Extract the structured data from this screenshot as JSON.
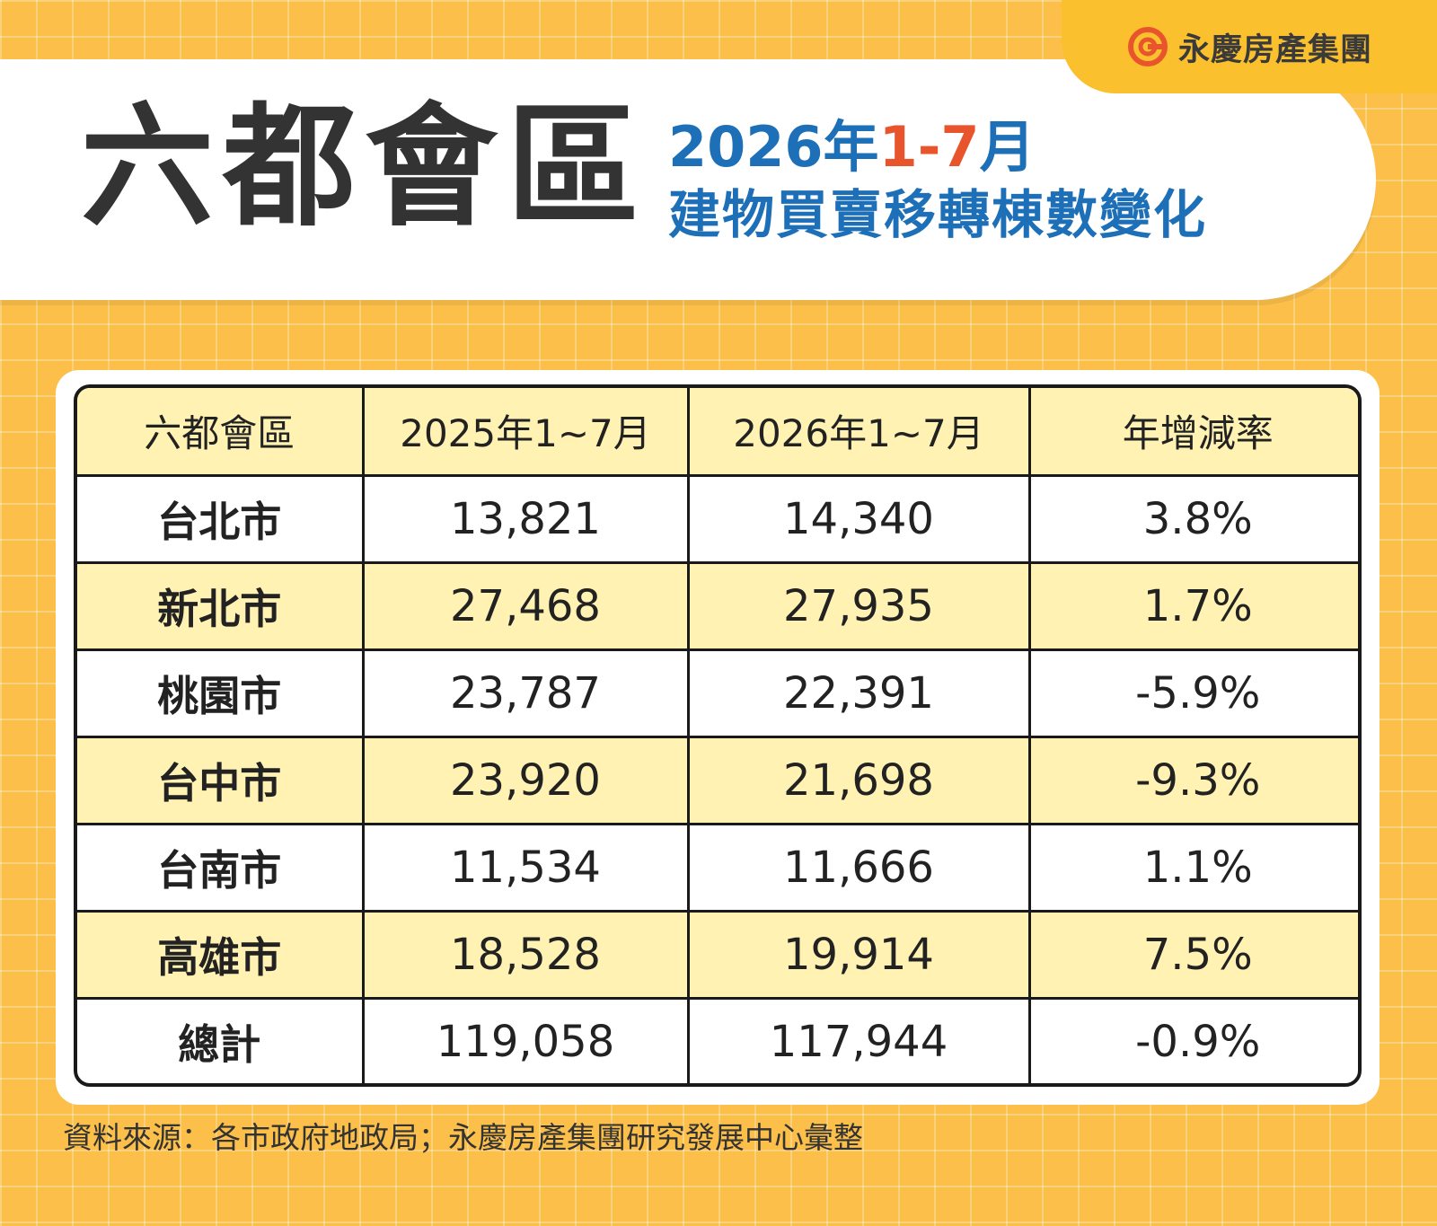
{
  "brand": {
    "name": "永慶房產集團",
    "logo_icon": "swirl-logo-icon",
    "logo_color": "#e8552d"
  },
  "title": {
    "main": "六都會區",
    "subtitle_year": "2026年",
    "subtitle_range": "1-7",
    "subtitle_month": "月",
    "subtitle_line2": "建物買賣移轉棟數變化"
  },
  "colors": {
    "background": "#fbbf4a",
    "title_blue": "#1d6fb8",
    "accent_orange": "#e8552d",
    "row_alt": "#fff2b3"
  },
  "table": {
    "headers": [
      "六都會區",
      "2025年1~7月",
      "2026年1~7月",
      "年增減率"
    ],
    "rows": [
      {
        "region": "台北市",
        "y2025": "13,821",
        "y2026": "14,340",
        "rate": "3.8%"
      },
      {
        "region": "新北市",
        "y2025": "27,468",
        "y2026": "27,935",
        "rate": "1.7%"
      },
      {
        "region": "桃園市",
        "y2025": "23,787",
        "y2026": "22,391",
        "rate": "-5.9%"
      },
      {
        "region": "台中市",
        "y2025": "23,920",
        "y2026": "21,698",
        "rate": "-9.3%"
      },
      {
        "region": "台南市",
        "y2025": "11,534",
        "y2026": "11,666",
        "rate": "1.1%"
      },
      {
        "region": "高雄市",
        "y2025": "18,528",
        "y2026": "19,914",
        "rate": "7.5%"
      },
      {
        "region": "總計",
        "y2025": "119,058",
        "y2026": "117,944",
        "rate": "-0.9%"
      }
    ]
  },
  "source": "資料來源：各市政府地政局；永慶房產集團研究發展中心彙整"
}
